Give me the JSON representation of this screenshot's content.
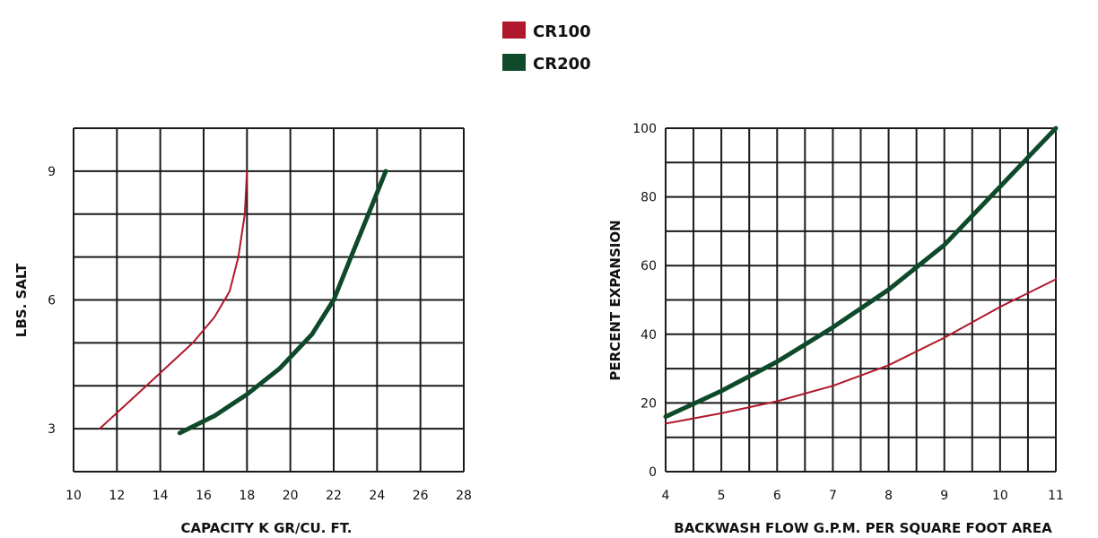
{
  "legend": {
    "items": [
      {
        "label": "CR100",
        "color": "#b0182b"
      },
      {
        "label": "CR200",
        "color": "#0e4a2a"
      }
    ]
  },
  "chart_data": [
    {
      "type": "line",
      "title": "",
      "xlabel": "CAPACITY K GR/CU. FT.",
      "ylabel": "LBS. SALT",
      "xlim": [
        10,
        28
      ],
      "ylim": [
        2,
        10
      ],
      "x_ticks": [
        10,
        12,
        14,
        16,
        18,
        20,
        22,
        24,
        26,
        28
      ],
      "y_ticks": [
        3,
        6,
        9
      ],
      "grid": true,
      "series": [
        {
          "name": "CR100",
          "points": [
            [
              11.2,
              3.0
            ],
            [
              12.5,
              3.6
            ],
            [
              14.0,
              4.3
            ],
            [
              15.5,
              5.0
            ],
            [
              16.5,
              5.6
            ],
            [
              17.2,
              6.2
            ],
            [
              17.6,
              7.0
            ],
            [
              17.9,
              8.0
            ],
            [
              18.0,
              9.0
            ]
          ]
        },
        {
          "name": "CR200",
          "points": [
            [
              14.9,
              2.9
            ],
            [
              16.5,
              3.3
            ],
            [
              18.0,
              3.8
            ],
            [
              19.5,
              4.4
            ],
            [
              21.0,
              5.2
            ],
            [
              22.0,
              6.0
            ],
            [
              22.8,
              7.0
            ],
            [
              23.6,
              8.0
            ],
            [
              24.4,
              9.0
            ]
          ]
        }
      ]
    },
    {
      "type": "line",
      "title": "",
      "xlabel": "BACKWASH FLOW G.P.M. PER SQUARE FOOT AREA",
      "ylabel": "PERCENT EXPANSION",
      "xlim": [
        4,
        11
      ],
      "ylim": [
        0,
        100
      ],
      "x_ticks": [
        4,
        5,
        6,
        7,
        8,
        9,
        10,
        11
      ],
      "y_ticks": [
        0,
        20,
        40,
        60,
        80,
        100
      ],
      "grid": true,
      "series": [
        {
          "name": "CR100",
          "points": [
            [
              4,
              14
            ],
            [
              5,
              17
            ],
            [
              6,
              20.5
            ],
            [
              7,
              25
            ],
            [
              8,
              31
            ],
            [
              9,
              39
            ],
            [
              10,
              48
            ],
            [
              11,
              56
            ]
          ]
        },
        {
          "name": "CR200",
          "points": [
            [
              4,
              16
            ],
            [
              5,
              23.5
            ],
            [
              6,
              32
            ],
            [
              7,
              42
            ],
            [
              8,
              53
            ],
            [
              9,
              66
            ],
            [
              10,
              83
            ],
            [
              11,
              100
            ]
          ]
        }
      ]
    }
  ]
}
